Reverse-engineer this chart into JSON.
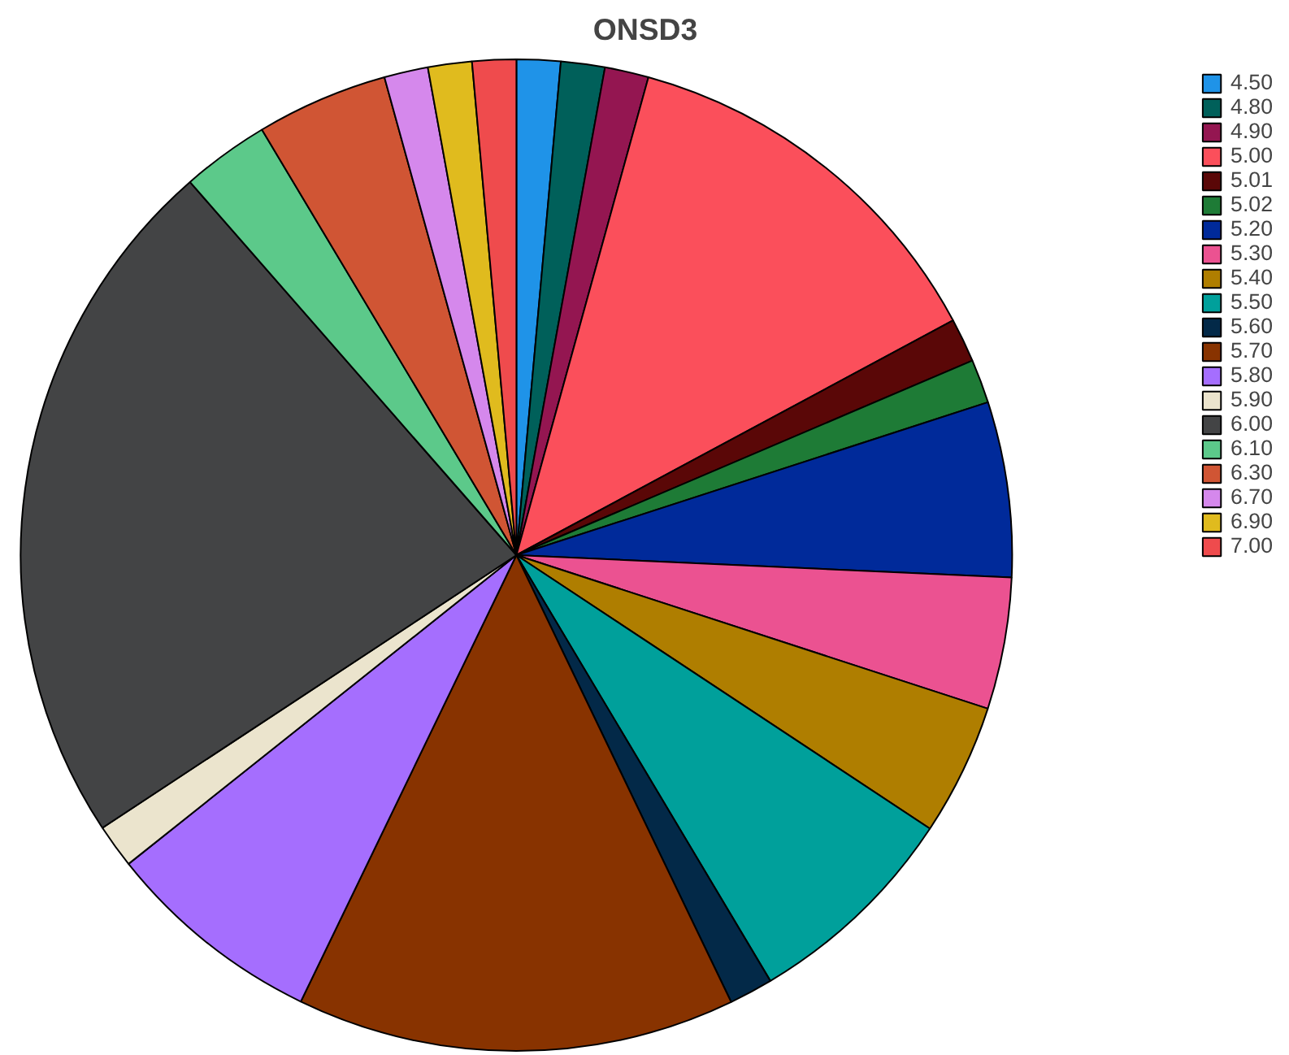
{
  "chart_data": {
    "type": "pie",
    "title": "ONSD3",
    "categories": [
      "4.50",
      "4.80",
      "4.90",
      "5.00",
      "5.01",
      "5.02",
      "5.20",
      "5.30",
      "5.40",
      "5.50",
      "5.60",
      "5.70",
      "5.80",
      "5.90",
      "6.00",
      "6.10",
      "6.30",
      "6.70",
      "6.90",
      "7.00"
    ],
    "values": [
      1.43,
      1.43,
      1.43,
      12.86,
      1.43,
      1.43,
      5.71,
      4.29,
      4.29,
      7.14,
      1.43,
      14.29,
      7.14,
      1.43,
      22.83,
      2.86,
      4.29,
      1.43,
      1.43,
      1.43
    ],
    "colors": [
      "#1f93e8",
      "#00605a",
      "#941651",
      "#fb4f5b",
      "#5a0707",
      "#1e7b36",
      "#002a9a",
      "#eb5291",
      "#af7e00",
      "#00a09b",
      "#032948",
      "#883300",
      "#a56efe",
      "#ebe4cd",
      "#434445",
      "#5cc98a",
      "#d05534",
      "#d588ec",
      "#e0bb1e",
      "#ef4b4d"
    ],
    "legend": "right"
  }
}
